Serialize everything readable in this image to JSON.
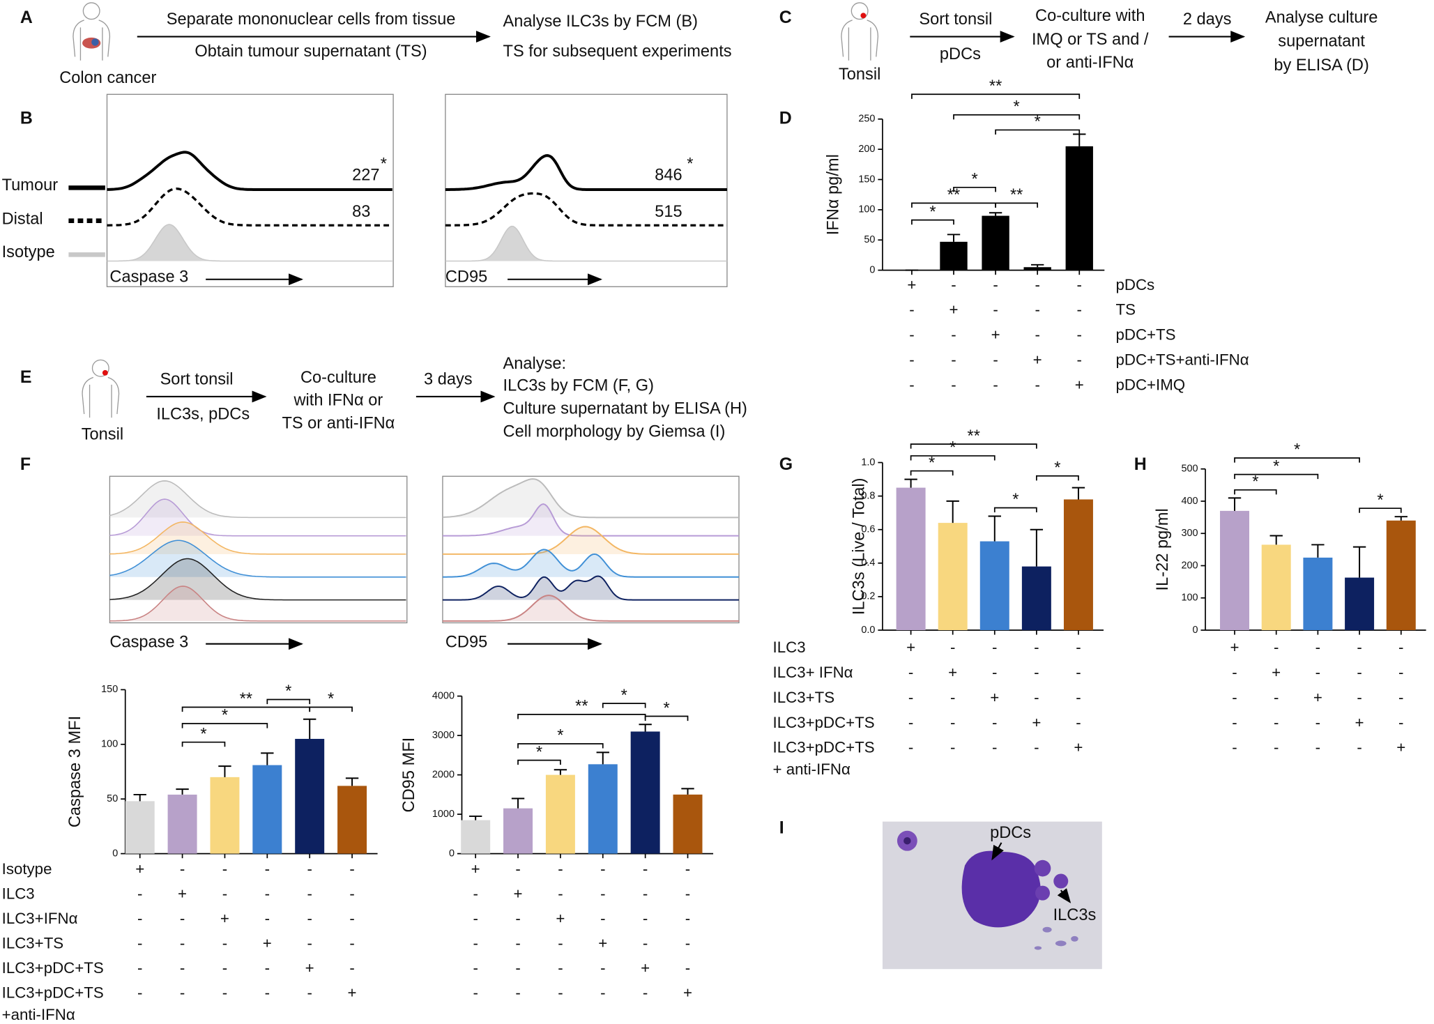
{
  "panels": {
    "letters": [
      "A",
      "B",
      "C",
      "D",
      "E",
      "F",
      "G",
      "H",
      "I"
    ],
    "A": {
      "source": "Colon cancer",
      "step1": "Separate mononuclear cells from tissue",
      "step2": "Obtain tumour supernatant (TS)",
      "out1": "Analyse ILC3s by FCM (B)",
      "out2": "TS for subsequent experiments"
    },
    "B": {
      "legend": [
        "Tumour",
        "Distal",
        "Isotype"
      ],
      "left": {
        "axis": "Caspase 3",
        "tumour": "227",
        "tumour_sig": "*",
        "distal": "83"
      },
      "right": {
        "axis": "CD95",
        "tumour": "846",
        "tumour_sig": "*",
        "distal": "515"
      }
    },
    "C": {
      "source": "Tonsil",
      "sort": "Sort tonsil",
      "cells": "pDCs",
      "culture": [
        "Co-culture with",
        "IMQ or TS and /",
        "or  anti-IFNα"
      ],
      "time": "2 days",
      "analyse": [
        "Analyse culture",
        "supernatant",
        "by ELISA (D)"
      ]
    },
    "E": {
      "source": "Tonsil",
      "sort": "Sort tonsil",
      "cells": "ILC3s, pDCs",
      "culture": [
        "Co-culture",
        "with IFNα or",
        "TS or anti-IFNα"
      ],
      "time": "3 days",
      "analyse": [
        "Analyse:",
        "ILC3s by FCM (F, G)",
        "Culture supernatant by ELISA (H)",
        "Cell morphology by Giemsa (I)"
      ]
    },
    "F": {
      "left_axis": "Caspase 3",
      "right_axis": "CD95"
    },
    "I": {
      "pdc": "pDCs",
      "ilc3": "ILC3s"
    }
  },
  "chart_data": [
    {
      "type": "bar",
      "ylabel": "IFNα pg/ml",
      "ylim": [
        0,
        250
      ],
      "yticks": [
        0,
        50,
        100,
        150,
        200,
        250
      ],
      "values": [
        0,
        47,
        90,
        5,
        205
      ],
      "errors": [
        0,
        12,
        5,
        4,
        20
      ],
      "colors": [
        "#000000",
        "#000000",
        "#000000",
        "#000000",
        "#000000"
      ],
      "brackets": [
        {
          "pair": [
            0,
            4
          ],
          "y": 291,
          "label": "**"
        },
        {
          "pair": [
            1,
            4
          ],
          "y": 257,
          "label": "*"
        },
        {
          "pair": [
            2,
            4
          ],
          "y": 232,
          "label": "*"
        },
        {
          "pair": [
            1,
            2
          ],
          "y": 137,
          "label": "*"
        },
        {
          "pair": [
            0,
            2
          ],
          "y": 111,
          "label": "**"
        },
        {
          "pair": [
            2,
            3
          ],
          "y": 111,
          "label": "**"
        },
        {
          "pair": [
            0,
            1
          ],
          "y": 83,
          "label": "*"
        }
      ],
      "rows": [
        {
          "label": "pDCs",
          "signs": [
            "+",
            "-",
            "-",
            "-",
            "-"
          ]
        },
        {
          "label": "TS",
          "signs": [
            "-",
            "+",
            "-",
            "-",
            "-"
          ]
        },
        {
          "label": "pDC+TS",
          "signs": [
            "-",
            "-",
            "+",
            "-",
            "-"
          ]
        },
        {
          "label": "pDC+TS+anti-IFNα",
          "signs": [
            "-",
            "-",
            "-",
            "+",
            "-"
          ]
        },
        {
          "label": "pDC+IMQ",
          "signs": [
            "-",
            "-",
            "-",
            "-",
            "+"
          ]
        }
      ]
    },
    {
      "type": "bar",
      "ylabel": "ILC3s (Live / Total)",
      "ylim": [
        0,
        1.0
      ],
      "yticks": [
        {
          "value": 0,
          "label": "0.0"
        },
        {
          "value": 0.2,
          "label": "0.2"
        },
        {
          "value": 0.4,
          "label": "0.4"
        },
        {
          "value": 0.6,
          "label": "0.6"
        },
        {
          "value": 0.8,
          "label": "0.8"
        },
        {
          "value": 1.0,
          "label": "1.0"
        }
      ],
      "values": [
        0.85,
        0.64,
        0.53,
        0.38,
        0.78
      ],
      "errors": [
        0.05,
        0.13,
        0.15,
        0.22,
        0.07
      ],
      "colors": [
        "#b7a1c9",
        "#f8d77f",
        "#3c80d0",
        "#0d2160",
        "#a9560d"
      ],
      "brackets": [
        {
          "pair": [
            0,
            1
          ],
          "y": 0.95,
          "label": "*"
        },
        {
          "pair": [
            0,
            2
          ],
          "y": 1.04,
          "label": "*"
        },
        {
          "pair": [
            0,
            3
          ],
          "y": 1.11,
          "label": "**"
        },
        {
          "pair": [
            2,
            3
          ],
          "y": 0.73,
          "label": "*"
        },
        {
          "pair": [
            3,
            4
          ],
          "y": 0.92,
          "label": "*"
        }
      ],
      "rows": [
        {
          "label": "ILC3",
          "signs": [
            "+",
            "-",
            "-",
            "-",
            "-"
          ]
        },
        {
          "label": "ILC3+ IFNα",
          "signs": [
            "-",
            "+",
            "-",
            "-",
            "-"
          ]
        },
        {
          "label": "ILC3+TS",
          "signs": [
            "-",
            "-",
            "+",
            "-",
            "-"
          ]
        },
        {
          "label": "ILC3+pDC+TS",
          "signs": [
            "-",
            "-",
            "-",
            "+",
            "-"
          ]
        },
        {
          "label": [
            "ILC3+pDC+TS",
            "+ anti-IFNα"
          ],
          "signs": [
            "-",
            "-",
            "-",
            "-",
            "+"
          ]
        }
      ]
    },
    {
      "type": "bar",
      "ylabel": "IL-22 pg/ml",
      "ylim": [
        0,
        500
      ],
      "yticks": [
        0,
        100,
        200,
        300,
        400,
        500
      ],
      "values": [
        370,
        265,
        225,
        163,
        340
      ],
      "errors": [
        40,
        28,
        40,
        95,
        12
      ],
      "colors": [
        "#b7a1c9",
        "#f8d77f",
        "#3c80d0",
        "#0d2160",
        "#a9560d"
      ],
      "brackets": [
        {
          "pair": [
            0,
            1
          ],
          "y": 435,
          "label": "*"
        },
        {
          "pair": [
            0,
            2
          ],
          "y": 483,
          "label": "*"
        },
        {
          "pair": [
            0,
            3
          ],
          "y": 534,
          "label": "*"
        },
        {
          "pair": [
            3,
            4
          ],
          "y": 378,
          "label": "*"
        }
      ],
      "rows": [
        {
          "signs": [
            "+",
            "-",
            "-",
            "-",
            "-"
          ]
        },
        {
          "signs": [
            "-",
            "+",
            "-",
            "-",
            "-"
          ]
        },
        {
          "signs": [
            "-",
            "-",
            "+",
            "-",
            "-"
          ]
        },
        {
          "signs": [
            "-",
            "-",
            "-",
            "+",
            "-"
          ]
        },
        {
          "signs": [
            "-",
            "-",
            "-",
            "-",
            "+"
          ]
        }
      ]
    },
    {
      "type": "bar",
      "ylabel": "Caspase 3 MFI",
      "ylim": [
        0,
        150
      ],
      "yticks": [
        0,
        50,
        100,
        150
      ],
      "values": [
        48,
        54,
        70,
        81,
        105,
        62
      ],
      "errors": [
        6,
        5,
        10,
        11,
        18,
        7
      ],
      "colors": [
        "#d9d9d9",
        "#b7a1c9",
        "#f8d77f",
        "#3c80d0",
        "#0d2160",
        "#a9560d"
      ],
      "brackets": [
        {
          "pair": [
            1,
            2
          ],
          "y": 102,
          "label": "*"
        },
        {
          "pair": [
            1,
            3
          ],
          "y": 119,
          "label": "*"
        },
        {
          "pair": [
            1,
            4
          ],
          "y": 134,
          "label": "**"
        },
        {
          "pair": [
            3,
            4
          ],
          "y": 141,
          "label": "*"
        },
        {
          "pair": [
            4,
            5
          ],
          "y": 134,
          "label": "*"
        }
      ],
      "rows": [
        {
          "label": "Isotype",
          "signs": [
            "+",
            "-",
            "-",
            "-",
            "-",
            "-"
          ]
        },
        {
          "label": "ILC3",
          "signs": [
            "-",
            "+",
            "-",
            "-",
            "-",
            "-"
          ]
        },
        {
          "label": "ILC3+IFNα",
          "signs": [
            "-",
            "-",
            "+",
            "-",
            "-",
            "-"
          ]
        },
        {
          "label": "ILC3+TS",
          "signs": [
            "-",
            "-",
            "-",
            "+",
            "-",
            "-"
          ]
        },
        {
          "label": "ILC3+pDC+TS",
          "signs": [
            "-",
            "-",
            "-",
            "-",
            "+",
            "-"
          ]
        },
        {
          "label": [
            "ILC3+pDC+TS",
            "+anti-IFNα"
          ],
          "signs": [
            "-",
            "-",
            "-",
            "-",
            "-",
            "+"
          ]
        }
      ]
    },
    {
      "type": "bar",
      "ylabel": "CD95 MFI",
      "ylim": [
        0,
        4000
      ],
      "yticks": [
        0,
        1000,
        2000,
        3000,
        4000
      ],
      "values": [
        850,
        1150,
        2000,
        2270,
        3100,
        1500
      ],
      "errors": [
        100,
        250,
        130,
        300,
        180,
        150
      ],
      "colors": [
        "#d9d9d9",
        "#b7a1c9",
        "#f8d77f",
        "#3c80d0",
        "#0d2160",
        "#a9560d"
      ],
      "brackets": [
        {
          "pair": [
            1,
            2
          ],
          "y": 2372,
          "label": "*"
        },
        {
          "pair": [
            1,
            3
          ],
          "y": 2790,
          "label": "*"
        },
        {
          "pair": [
            1,
            4
          ],
          "y": 3535,
          "label": "**"
        },
        {
          "pair": [
            3,
            4
          ],
          "y": 3814,
          "label": "*"
        },
        {
          "pair": [
            4,
            5
          ],
          "y": 3488,
          "label": "*"
        }
      ],
      "rows": [
        {
          "signs": [
            "+",
            "-",
            "-",
            "-",
            "-",
            "-"
          ]
        },
        {
          "signs": [
            "-",
            "+",
            "-",
            "-",
            "-",
            "-"
          ]
        },
        {
          "signs": [
            "-",
            "-",
            "+",
            "-",
            "-",
            "-"
          ]
        },
        {
          "signs": [
            "-",
            "-",
            "-",
            "+",
            "-",
            "-"
          ]
        },
        {
          "signs": [
            "-",
            "-",
            "-",
            "-",
            "+",
            "-"
          ]
        },
        {
          "signs": [
            "-",
            "-",
            "-",
            "-",
            "-",
            "+"
          ]
        }
      ]
    }
  ]
}
